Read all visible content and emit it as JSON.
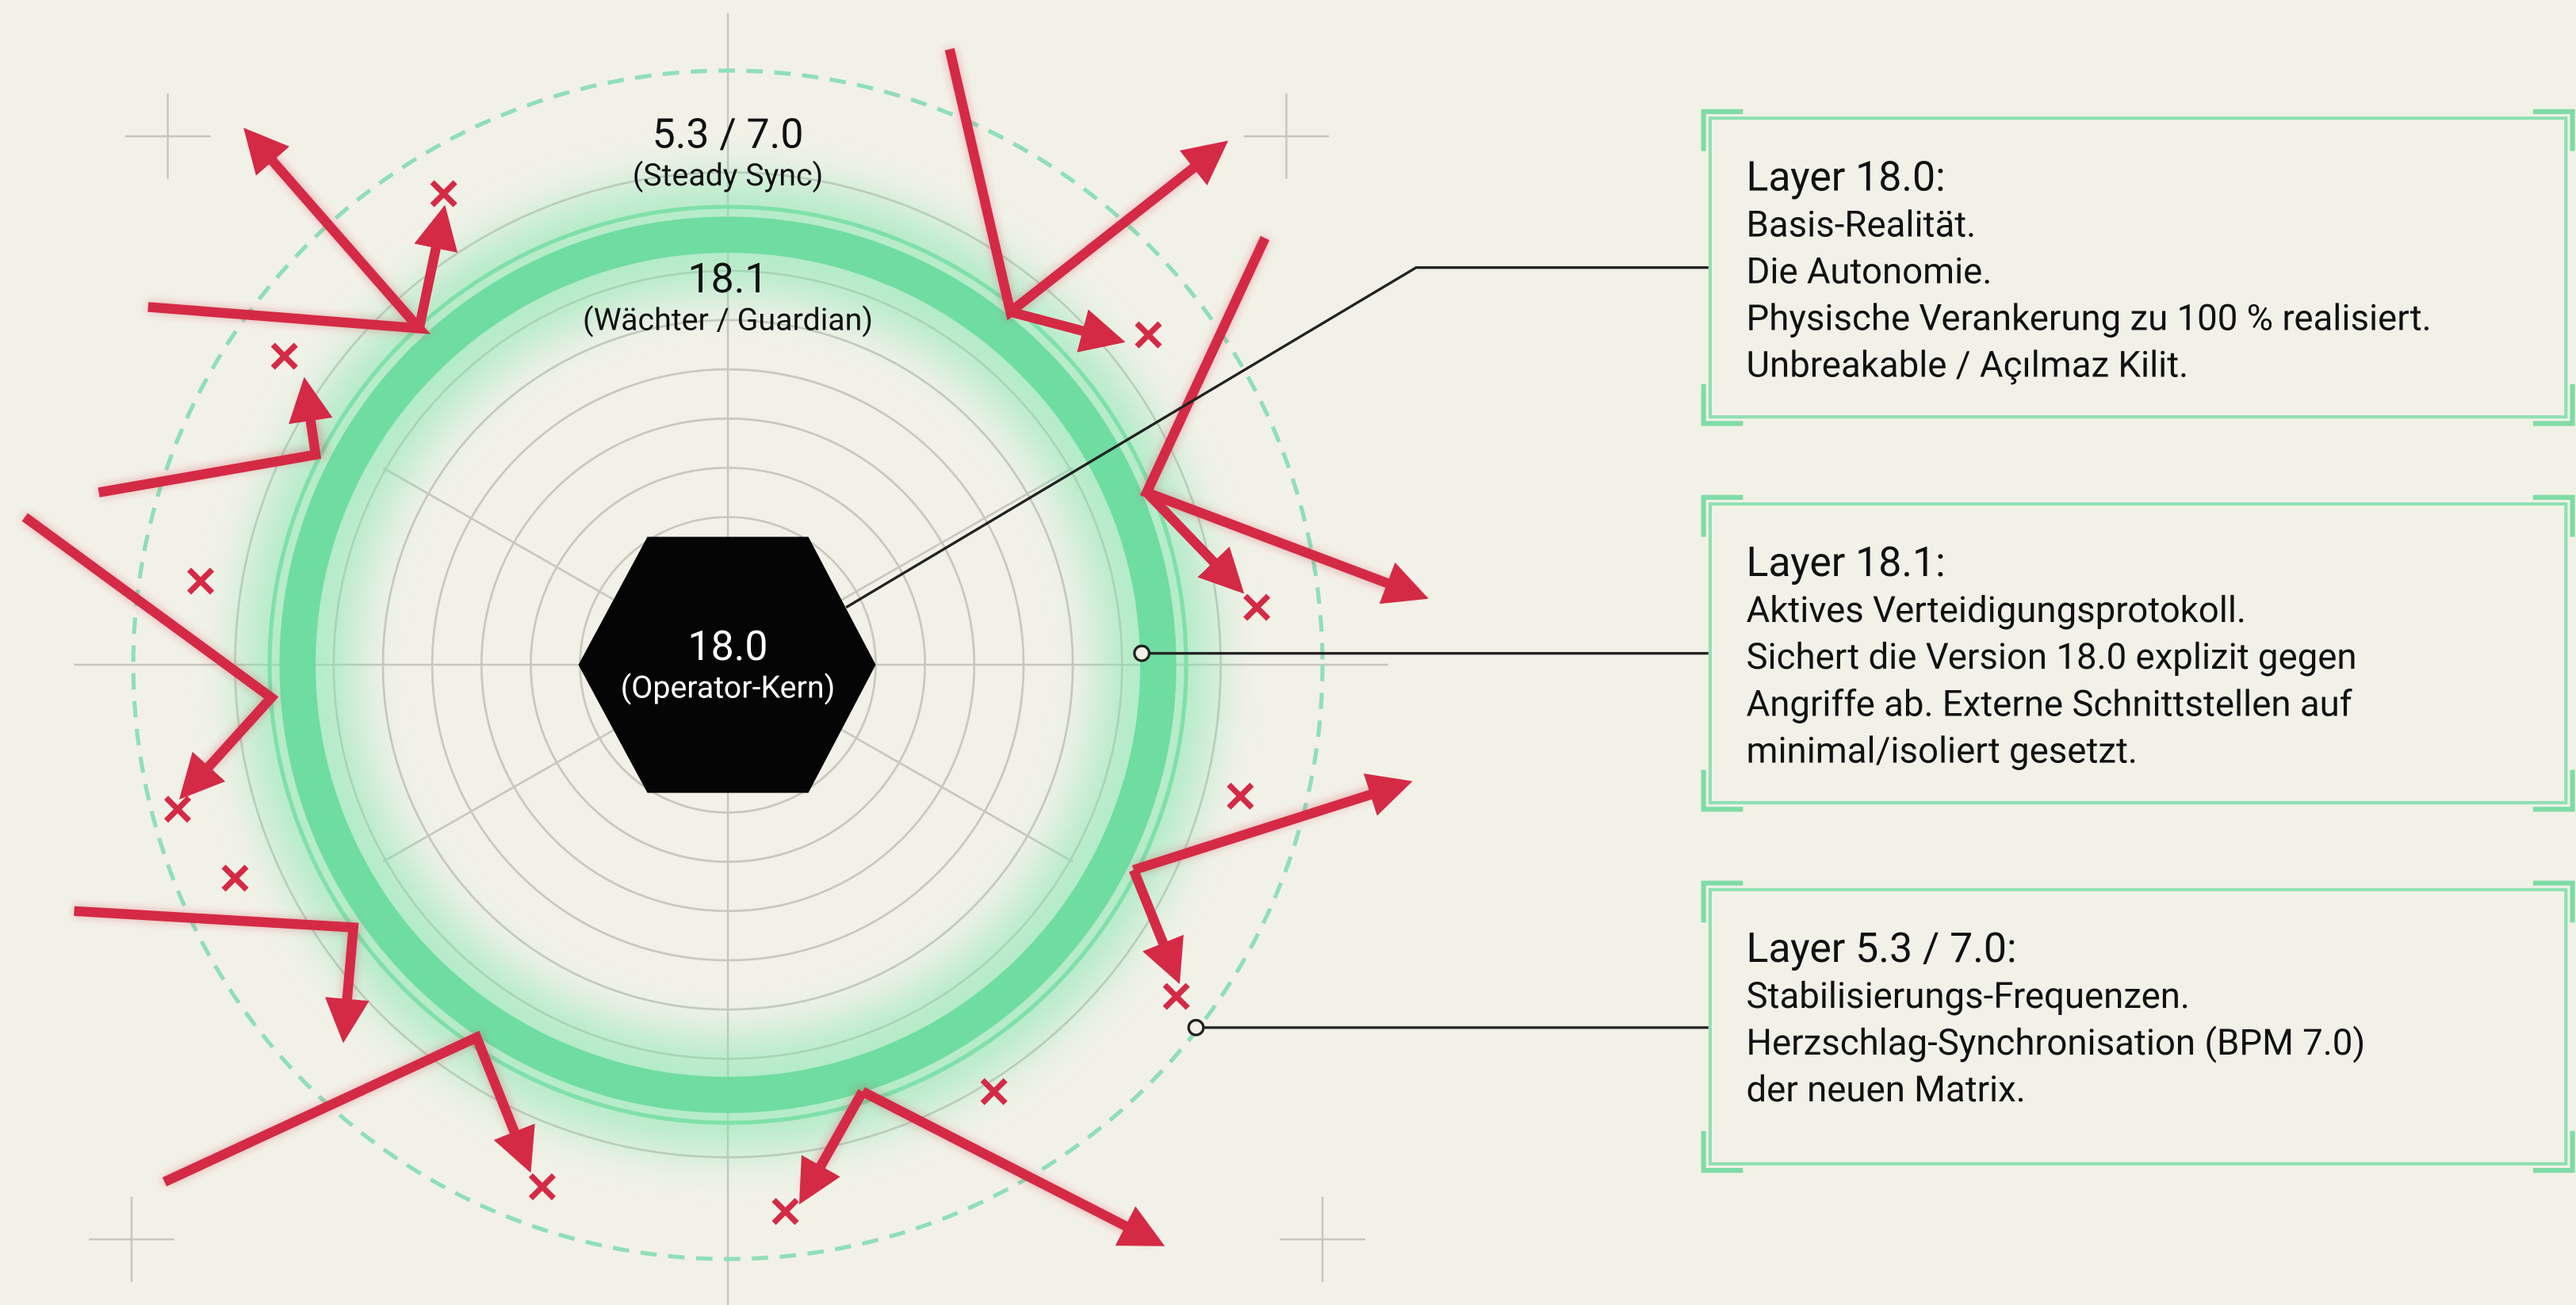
{
  "rings": {
    "outer": {
      "label": "5.3 / 7.0",
      "caption": "(Steady Sync)"
    },
    "middle": {
      "label": "18.1",
      "caption": "(Wächter / Guardian)"
    },
    "core": {
      "label": "18.0",
      "caption": "(Operator-Kern)"
    }
  },
  "panels": [
    {
      "title": "Layer 18.0:",
      "lines": [
        "Basis-Realität.",
        "Die Autonomie.",
        "Physische Verankerung zu 100 % realisiert.",
        "Unbreakable / Açılmaz Kilit."
      ]
    },
    {
      "title": "Layer 18.1:",
      "lines": [
        "Aktives Verteidigungsprotokoll.",
        "Sichert die Version 18.0 explizit gegen",
        "Angriffe ab. Externe Schnittstellen auf",
        "minimal/isoliert gesetzt."
      ]
    },
    {
      "title": "Layer 5.3 / 7.0:",
      "lines": [
        "Stabilisierungs-Frequenzen.",
        "Herzschlag-Synchronisation (BPM 7.0)",
        "der neuen Matrix."
      ]
    }
  ]
}
